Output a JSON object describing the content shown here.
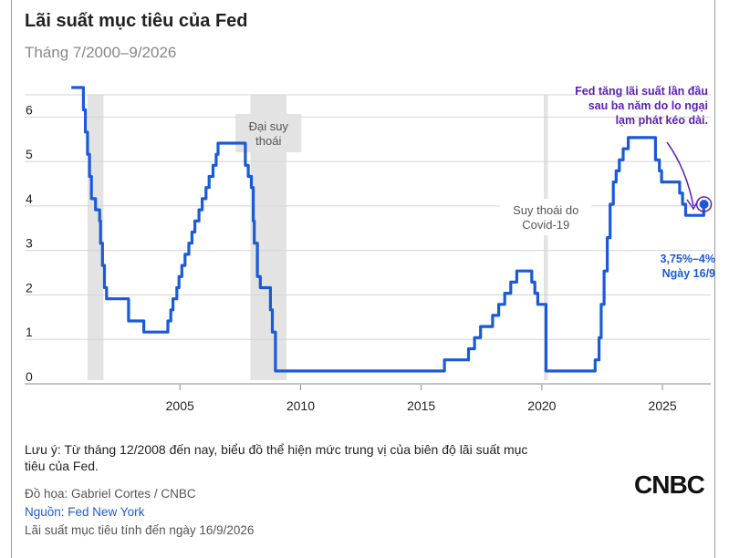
{
  "title": "Lãi suất mục tiêu của Fed",
  "subtitle": "Tháng 7/2000–9/2026",
  "colors": {
    "line": "#1a5ad8",
    "recession": "#e3e3e3",
    "annotation": "#5b1fb5",
    "label_blue": "#1a5ad8"
  },
  "chart_data": {
    "type": "line",
    "title": "Lãi suất mục tiêu của Fed",
    "subtitle": "Tháng 7/2000–9/2026",
    "xlabel": "",
    "ylabel": "",
    "xlim": [
      2000.0,
      2027.0
    ],
    "ylim": [
      0,
      6.5
    ],
    "grid": true,
    "x_ticks": [
      "2005",
      "2010",
      "2015",
      "2020",
      "2025"
    ],
    "x_tick_values": [
      2005,
      2010,
      2015,
      2020,
      2025
    ],
    "y_ticks": [
      "0",
      "1",
      "2",
      "3",
      "4",
      "5",
      "6"
    ],
    "y_tick_values": [
      0,
      1,
      2,
      3,
      4,
      5,
      6
    ],
    "recessions": [
      {
        "start": 2001.17,
        "end": 2001.83,
        "label": ""
      },
      {
        "start": 2007.92,
        "end": 2009.42,
        "label": "Đại suy thoái"
      },
      {
        "start": 2020.08,
        "end": 2020.25,
        "label": "Suy thoái do Covid-19"
      }
    ],
    "series": [
      {
        "name": "",
        "points": [
          [
            2000.5,
            6.5
          ],
          [
            2001.0,
            6.5
          ],
          [
            2001.0,
            6.0
          ],
          [
            2001.08,
            6.0
          ],
          [
            2001.08,
            5.5
          ],
          [
            2001.17,
            5.5
          ],
          [
            2001.17,
            5.0
          ],
          [
            2001.25,
            5.0
          ],
          [
            2001.25,
            4.5
          ],
          [
            2001.33,
            4.5
          ],
          [
            2001.33,
            4.0
          ],
          [
            2001.5,
            4.0
          ],
          [
            2001.5,
            3.75
          ],
          [
            2001.67,
            3.75
          ],
          [
            2001.67,
            3.5
          ],
          [
            2001.71,
            3.5
          ],
          [
            2001.71,
            3.0
          ],
          [
            2001.79,
            3.0
          ],
          [
            2001.79,
            2.5
          ],
          [
            2001.87,
            2.5
          ],
          [
            2001.87,
            2.0
          ],
          [
            2001.96,
            2.0
          ],
          [
            2001.96,
            1.75
          ],
          [
            2002.87,
            1.75
          ],
          [
            2002.87,
            1.25
          ],
          [
            2003.5,
            1.25
          ],
          [
            2003.5,
            1.0
          ],
          [
            2004.5,
            1.0
          ],
          [
            2004.5,
            1.25
          ],
          [
            2004.62,
            1.25
          ],
          [
            2004.62,
            1.5
          ],
          [
            2004.71,
            1.5
          ],
          [
            2004.71,
            1.75
          ],
          [
            2004.87,
            1.75
          ],
          [
            2004.87,
            2.0
          ],
          [
            2004.96,
            2.0
          ],
          [
            2004.96,
            2.25
          ],
          [
            2005.08,
            2.25
          ],
          [
            2005.08,
            2.5
          ],
          [
            2005.21,
            2.5
          ],
          [
            2005.21,
            2.75
          ],
          [
            2005.37,
            2.75
          ],
          [
            2005.37,
            3.0
          ],
          [
            2005.5,
            3.0
          ],
          [
            2005.5,
            3.25
          ],
          [
            2005.62,
            3.25
          ],
          [
            2005.62,
            3.5
          ],
          [
            2005.79,
            3.5
          ],
          [
            2005.79,
            3.75
          ],
          [
            2005.92,
            3.75
          ],
          [
            2005.92,
            4.0
          ],
          [
            2006.08,
            4.0
          ],
          [
            2006.08,
            4.25
          ],
          [
            2006.21,
            4.25
          ],
          [
            2006.21,
            4.5
          ],
          [
            2006.37,
            4.5
          ],
          [
            2006.37,
            4.75
          ],
          [
            2006.5,
            4.75
          ],
          [
            2006.5,
            5.0
          ],
          [
            2006.58,
            5.0
          ],
          [
            2006.58,
            5.25
          ],
          [
            2007.71,
            5.25
          ],
          [
            2007.71,
            4.75
          ],
          [
            2007.83,
            4.75
          ],
          [
            2007.83,
            4.5
          ],
          [
            2007.96,
            4.5
          ],
          [
            2007.96,
            4.25
          ],
          [
            2008.04,
            4.25
          ],
          [
            2008.04,
            3.5
          ],
          [
            2008.08,
            3.5
          ],
          [
            2008.08,
            3.0
          ],
          [
            2008.21,
            3.0
          ],
          [
            2008.21,
            2.25
          ],
          [
            2008.33,
            2.25
          ],
          [
            2008.33,
            2.0
          ],
          [
            2008.75,
            2.0
          ],
          [
            2008.75,
            1.5
          ],
          [
            2008.83,
            1.5
          ],
          [
            2008.83,
            1.0
          ],
          [
            2008.96,
            1.0
          ],
          [
            2008.96,
            0.125
          ],
          [
            2015.96,
            0.125
          ],
          [
            2015.96,
            0.375
          ],
          [
            2016.96,
            0.375
          ],
          [
            2016.96,
            0.625
          ],
          [
            2017.21,
            0.625
          ],
          [
            2017.21,
            0.875
          ],
          [
            2017.46,
            0.875
          ],
          [
            2017.46,
            1.125
          ],
          [
            2017.96,
            1.125
          ],
          [
            2017.96,
            1.375
          ],
          [
            2018.21,
            1.375
          ],
          [
            2018.21,
            1.625
          ],
          [
            2018.46,
            1.625
          ],
          [
            2018.46,
            1.875
          ],
          [
            2018.71,
            1.875
          ],
          [
            2018.71,
            2.125
          ],
          [
            2018.96,
            2.125
          ],
          [
            2018.96,
            2.375
          ],
          [
            2019.58,
            2.375
          ],
          [
            2019.58,
            2.125
          ],
          [
            2019.71,
            2.125
          ],
          [
            2019.71,
            1.875
          ],
          [
            2019.83,
            1.875
          ],
          [
            2019.83,
            1.625
          ],
          [
            2020.17,
            1.625
          ],
          [
            2020.17,
            0.125
          ],
          [
            2022.21,
            0.125
          ],
          [
            2022.21,
            0.375
          ],
          [
            2022.37,
            0.375
          ],
          [
            2022.37,
            0.875
          ],
          [
            2022.46,
            0.875
          ],
          [
            2022.46,
            1.625
          ],
          [
            2022.58,
            1.625
          ],
          [
            2022.58,
            2.375
          ],
          [
            2022.71,
            2.375
          ],
          [
            2022.71,
            3.125
          ],
          [
            2022.83,
            3.125
          ],
          [
            2022.83,
            3.875
          ],
          [
            2022.96,
            3.875
          ],
          [
            2022.96,
            4.375
          ],
          [
            2023.08,
            4.375
          ],
          [
            2023.08,
            4.625
          ],
          [
            2023.21,
            4.625
          ],
          [
            2023.21,
            4.875
          ],
          [
            2023.37,
            4.875
          ],
          [
            2023.37,
            5.125
          ],
          [
            2023.58,
            5.125
          ],
          [
            2023.58,
            5.375
          ],
          [
            2024.71,
            5.375
          ],
          [
            2024.71,
            4.875
          ],
          [
            2024.87,
            4.875
          ],
          [
            2024.87,
            4.625
          ],
          [
            2024.96,
            4.625
          ],
          [
            2024.96,
            4.375
          ],
          [
            2025.71,
            4.375
          ],
          [
            2025.71,
            4.125
          ],
          [
            2025.83,
            4.125
          ],
          [
            2025.83,
            3.875
          ],
          [
            2025.96,
            3.875
          ],
          [
            2025.96,
            3.625
          ],
          [
            2026.71,
            3.625
          ],
          [
            2026.71,
            3.875
          ],
          [
            2026.72,
            3.875
          ]
        ]
      }
    ],
    "annotations": [
      {
        "text_lines": [
          "Fed tăng lãi suất lần đầu",
          "sau ba năm do lo ngại",
          "lạm phát kéo dài."
        ],
        "x": 2026.72,
        "y": 3.875
      },
      {
        "text_lines": [
          "3,75%–4%",
          "Ngày 16/9"
        ],
        "x": 2026.72,
        "y": 3.875
      }
    ]
  },
  "note": "Lưu ý: Từ tháng 12/2008 đến nay, biểu đồ thể hiện mức trung vị của biên độ lãi suất mục tiêu của Fed.",
  "credit": "Đồ họa: Gabriel Cortes / CNBC",
  "source": "Nguồn: Fed New York",
  "asof": "Lãi suất mục tiêu tính đến ngày 16/9/2026",
  "logo": "CNBC"
}
